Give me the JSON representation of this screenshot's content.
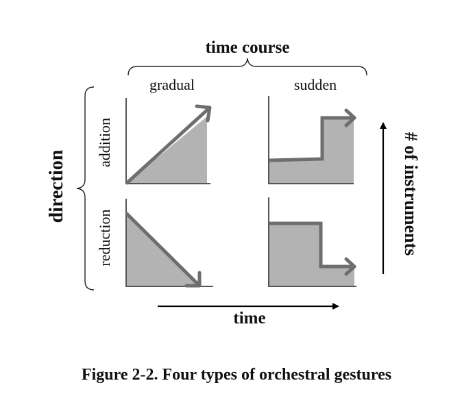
{
  "labels": {
    "time_course": "time course",
    "gradual": "gradual",
    "sudden": "sudden",
    "direction": "direction",
    "addition": "addition",
    "reduction": "reduction",
    "instruments": "# of instruments",
    "time": "time",
    "caption": "Figure 2-2. Four types of orchestral gestures"
  },
  "colors": {
    "fill": "#b3b3b3",
    "stroke": "#6e6e6e",
    "axis": "#555555",
    "text": "#111111"
  }
}
